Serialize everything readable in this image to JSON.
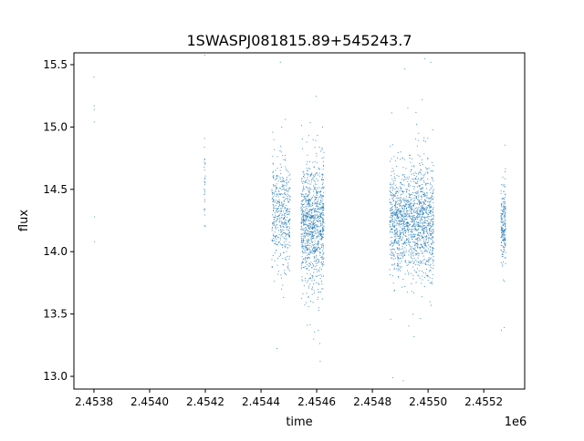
{
  "chart_data": {
    "type": "scatter",
    "title": "1SWASPJ081815.89+545243.7",
    "xlabel": "time",
    "ylabel": "flux",
    "x_offset_label": "1e6",
    "xlim": [
      2453728,
      2455347
    ],
    "ylim": [
      12.898,
      15.595
    ],
    "x_ticks": [
      2453800,
      2454000,
      2454200,
      2454400,
      2454600,
      2454800,
      2455000,
      2455200
    ],
    "x_tick_labels": [
      "2.4538",
      "2.4540",
      "2.4542",
      "2.4544",
      "2.4546",
      "2.4548",
      "2.4550",
      "2.4552"
    ],
    "y_ticks": [
      13.0,
      13.5,
      14.0,
      14.5,
      15.0,
      15.5
    ],
    "y_tick_labels": [
      "13.0",
      "13.5",
      "14.0",
      "14.5",
      "15.0",
      "15.5"
    ],
    "grid": false,
    "marker_color": "#1f77b4",
    "explicit_points": [
      [
        2453800,
        15.4
      ],
      [
        2453801,
        15.17
      ],
      [
        2453801,
        15.14
      ],
      [
        2453801,
        15.04
      ],
      [
        2453802,
        14.28
      ],
      [
        2453802,
        14.08
      ]
    ],
    "observing_seasons": [
      {
        "x_range": [
          2454196,
          2454200
        ],
        "flux_center": 14.6,
        "flux_spread": 0.25,
        "points": 30
      },
      {
        "x_range": [
          2454439,
          2454505
        ],
        "flux_center": 14.3,
        "flux_spread": 0.2,
        "points": 450
      },
      {
        "x_range": [
          2454544,
          2454626
        ],
        "flux_center": 14.2,
        "flux_spread": 0.25,
        "points": 1000
      },
      {
        "x_range": [
          2454862,
          2454938
        ],
        "flux_center": 14.25,
        "flux_spread": 0.2,
        "points": 700
      },
      {
        "x_range": [
          2454938,
          2455020
        ],
        "flux_center": 14.25,
        "flux_spread": 0.22,
        "points": 800
      },
      {
        "x_range": [
          2455262,
          2455279
        ],
        "flux_center": 14.2,
        "flux_spread": 0.15,
        "points": 200
      }
    ]
  }
}
